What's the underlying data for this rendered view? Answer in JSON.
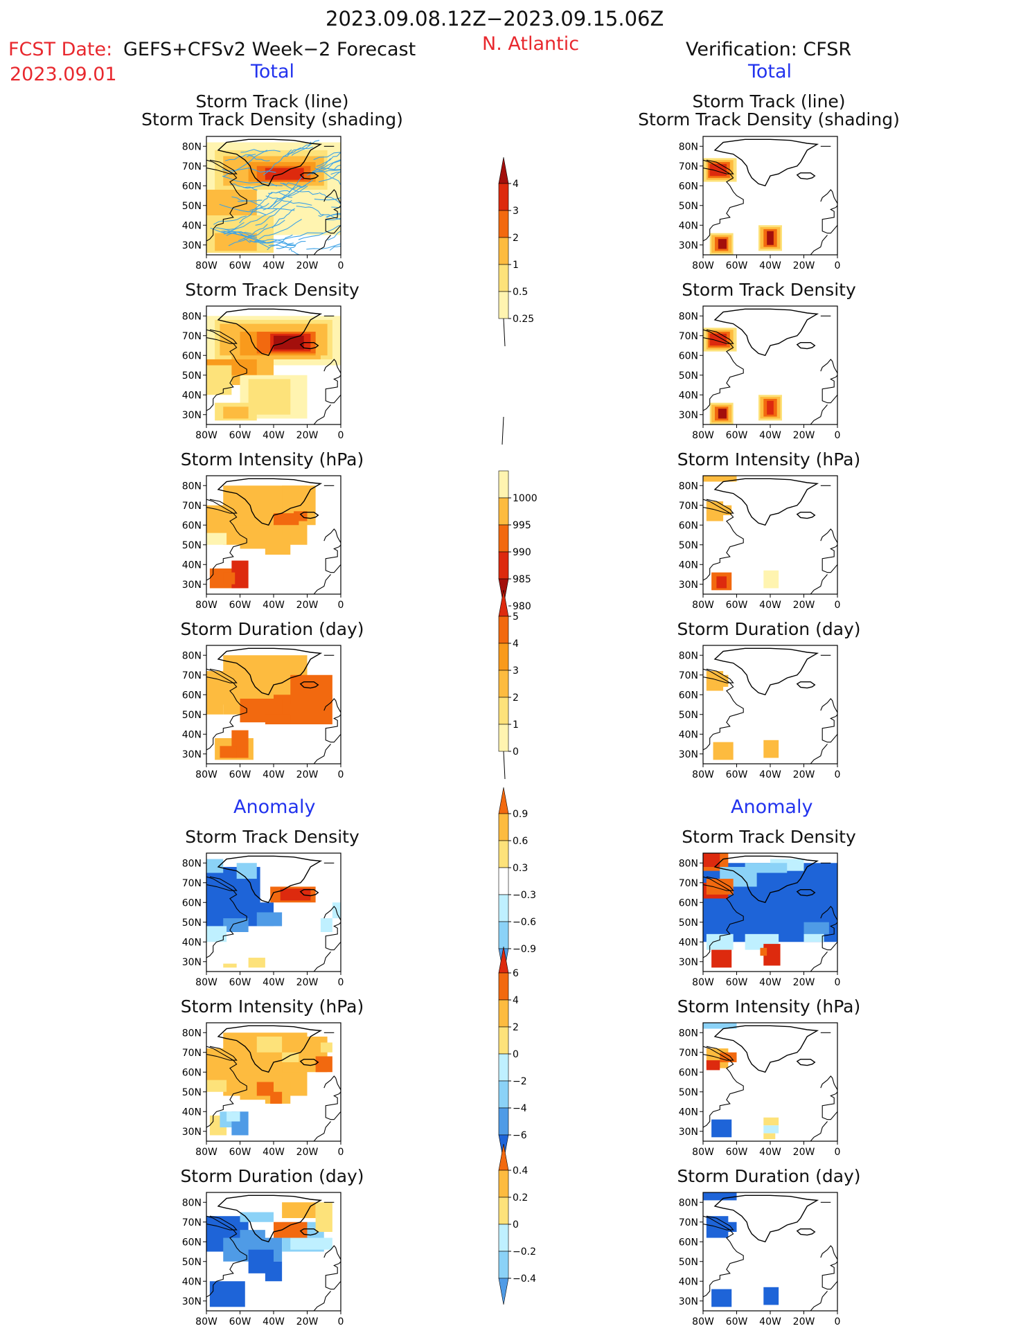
{
  "header": {
    "date_range": "2023.09.08.12Z−2023.09.15.06Z",
    "fcst_label": "FCST Date:",
    "fcst_model": "GEFS+CFSv2 Week−2 Forecast",
    "fcst_date": "2023.09.01",
    "region": "N. Atlantic",
    "verification": "Verification: CFSR",
    "total_left": "Total",
    "total_right": "Total",
    "anomaly_left": "Anomaly",
    "anomaly_right": "Anomaly"
  },
  "panel_titles": {
    "track_line": "Storm Track (line)",
    "track_shading": "Storm Track Density (shading)",
    "density": "Storm Track Density",
    "intensity": "Storm Intensity (hPa)",
    "duration": "Storm Duration (day)"
  },
  "axes": {
    "lat_ticks": [
      "80N",
      "70N",
      "60N",
      "50N",
      "40N",
      "30N"
    ],
    "lon_ticks": [
      "80W",
      "60W",
      "40W",
      "20W",
      "0"
    ]
  },
  "colors": {
    "yellow1": "#fff4b0",
    "yellow2": "#fde27a",
    "orange1": "#fdbb3f",
    "orange2": "#f99a1c",
    "orange3": "#f2690f",
    "red1": "#dd2a0e",
    "red2": "#a30f0c",
    "blue1": "#bff0ff",
    "blue2": "#8bd2f7",
    "blue3": "#4f9be6",
    "blue4": "#1e64d8",
    "track_line": "#3ca2e6"
  },
  "chart_data": {
    "type": "heatmap",
    "colorbars": [
      {
        "name": "track_density",
        "labels": [
          "4",
          "3",
          "2",
          "1",
          "0.5",
          "0.25"
        ]
      },
      {
        "name": "intensity",
        "labels": [
          "1000",
          "995",
          "990",
          "985",
          "980"
        ]
      },
      {
        "name": "duration",
        "labels": [
          "5",
          "4",
          "3",
          "2",
          "1",
          "0"
        ]
      },
      {
        "name": "density_anomaly",
        "labels": [
          "0.9",
          "0.6",
          "0.3",
          "−0.3",
          "−0.6",
          "−0.9"
        ]
      },
      {
        "name": "intensity_anomaly",
        "labels": [
          "6",
          "4",
          "2",
          "0",
          "−2",
          "−4",
          "−6"
        ]
      },
      {
        "name": "duration_anomaly",
        "labels": [
          "0.4",
          "0.2",
          "0",
          "−0.2",
          "−0.4"
        ]
      }
    ]
  }
}
